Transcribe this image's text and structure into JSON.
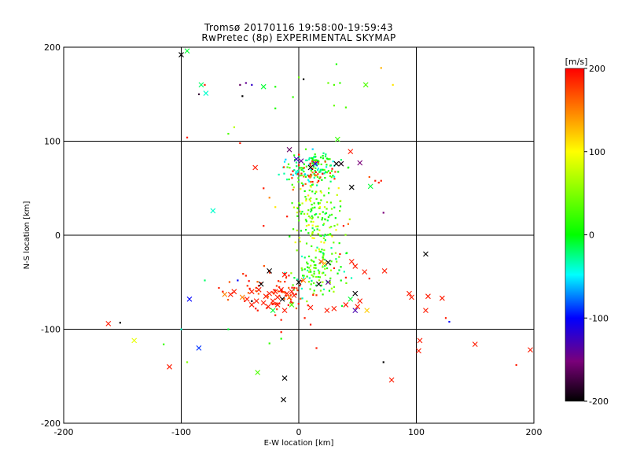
{
  "chart_data": {
    "type": "scatter",
    "title": "Tromsø 20170116 19:58:00-19:59:43",
    "subtitle": "RwPretec (8p) EXPERIMENTAL SKYMAP",
    "xlabel": "E-W location [km]",
    "ylabel": "N-S location [km]",
    "xlim": [
      -200,
      200
    ],
    "ylim": [
      -200,
      200
    ],
    "xticks": [
      "-200",
      "-100",
      "0",
      "100",
      "200"
    ],
    "yticks": [
      "-200",
      "-100",
      "0",
      "100",
      "200"
    ],
    "grid": true,
    "colorbar": {
      "label": "[m/s]",
      "range": [
        -200,
        200
      ],
      "ticks": [
        "200",
        "100",
        "0",
        "-100",
        "-200"
      ]
    },
    "markers": [
      {
        "x": -100,
        "y": 192,
        "v": -200,
        "m": "x"
      },
      {
        "x": -95,
        "y": 196,
        "v": -10,
        "m": "x"
      },
      {
        "x": -83,
        "y": 160,
        "v": -20,
        "m": "x"
      },
      {
        "x": -79,
        "y": 151,
        "v": -40,
        "m": "x"
      },
      {
        "x": -30,
        "y": 158,
        "v": -10,
        "m": "x"
      },
      {
        "x": 57,
        "y": 160,
        "v": 30,
        "m": "x"
      },
      {
        "x": 33,
        "y": 102,
        "v": 20,
        "m": "x"
      },
      {
        "x": -73,
        "y": 26,
        "v": -40,
        "m": "x"
      },
      {
        "x": -37,
        "y": 72,
        "v": 190,
        "m": "x"
      },
      {
        "x": -8,
        "y": 91,
        "v": -160,
        "m": "x"
      },
      {
        "x": -2,
        "y": 81,
        "v": -120,
        "m": "x"
      },
      {
        "x": 2,
        "y": 79,
        "v": -140,
        "m": "x"
      },
      {
        "x": 10,
        "y": 72,
        "v": -200,
        "m": "x"
      },
      {
        "x": 14,
        "y": 76,
        "v": -120,
        "m": "x"
      },
      {
        "x": 32,
        "y": 76,
        "v": -200,
        "m": "x"
      },
      {
        "x": 36,
        "y": 76,
        "v": -190,
        "m": "x"
      },
      {
        "x": 44,
        "y": 89,
        "v": 190,
        "m": "x"
      },
      {
        "x": 52,
        "y": 77,
        "v": -150,
        "m": "x"
      },
      {
        "x": 45,
        "y": 51,
        "v": -200,
        "m": "x"
      },
      {
        "x": 61,
        "y": 52,
        "v": -10,
        "m": "x"
      },
      {
        "x": 108,
        "y": -20,
        "v": -200,
        "m": "x"
      },
      {
        "x": 22,
        "y": -30,
        "v": 120,
        "m": "x"
      },
      {
        "x": 25,
        "y": -29,
        "v": -200,
        "m": "x"
      },
      {
        "x": 19,
        "y": -28,
        "v": 170,
        "m": "x"
      },
      {
        "x": 45,
        "y": -28,
        "v": 190,
        "m": "x"
      },
      {
        "x": 48,
        "y": -33,
        "v": 190,
        "m": "x"
      },
      {
        "x": 56,
        "y": -39,
        "v": 190,
        "m": "x"
      },
      {
        "x": 73,
        "y": -38,
        "v": 190,
        "m": "x"
      },
      {
        "x": -25,
        "y": -38,
        "v": -200,
        "m": "x"
      },
      {
        "x": -12,
        "y": -42,
        "v": 190,
        "m": "x"
      },
      {
        "x": 0,
        "y": -50,
        "v": -200,
        "m": "x"
      },
      {
        "x": 4,
        "y": -48,
        "v": 150,
        "m": "x"
      },
      {
        "x": 17,
        "y": -52,
        "v": -200,
        "m": "x"
      },
      {
        "x": 25,
        "y": -50,
        "v": -140,
        "m": "x"
      },
      {
        "x": -32,
        "y": -52,
        "v": -200,
        "m": "x"
      },
      {
        "x": -34,
        "y": -58,
        "v": 190,
        "m": "x"
      },
      {
        "x": -40,
        "y": -60,
        "v": 190,
        "m": "x"
      },
      {
        "x": -55,
        "y": -60,
        "v": 190,
        "m": "x"
      },
      {
        "x": -58,
        "y": -63,
        "v": 190,
        "m": "x"
      },
      {
        "x": -63,
        "y": -63,
        "v": 150,
        "m": "x"
      },
      {
        "x": -28,
        "y": -65,
        "v": 190,
        "m": "x"
      },
      {
        "x": -25,
        "y": -62,
        "v": 190,
        "m": "x"
      },
      {
        "x": -20,
        "y": -60,
        "v": 190,
        "m": "x"
      },
      {
        "x": -15,
        "y": -58,
        "v": 190,
        "m": "x"
      },
      {
        "x": -10,
        "y": -62,
        "v": 190,
        "m": "x"
      },
      {
        "x": -6,
        "y": -60,
        "v": 190,
        "m": "x"
      },
      {
        "x": -18,
        "y": -66,
        "v": 190,
        "m": "x"
      },
      {
        "x": -14,
        "y": -68,
        "v": -200,
        "m": "x"
      },
      {
        "x": -22,
        "y": -70,
        "v": 190,
        "m": "x"
      },
      {
        "x": -8,
        "y": -66,
        "v": 150,
        "m": "x"
      },
      {
        "x": -4,
        "y": -64,
        "v": 190,
        "m": "x"
      },
      {
        "x": -30,
        "y": -72,
        "v": 190,
        "m": "x"
      },
      {
        "x": -40,
        "y": -74,
        "v": 190,
        "m": "x"
      },
      {
        "x": -36,
        "y": -70,
        "v": 190,
        "m": "x"
      },
      {
        "x": -44,
        "y": -68,
        "v": 190,
        "m": "x"
      },
      {
        "x": -48,
        "y": -66,
        "v": 150,
        "m": "x"
      },
      {
        "x": -26,
        "y": -76,
        "v": 190,
        "m": "x"
      },
      {
        "x": -22,
        "y": -80,
        "v": -10,
        "m": "x"
      },
      {
        "x": -18,
        "y": -74,
        "v": 190,
        "m": "x"
      },
      {
        "x": -12,
        "y": -80,
        "v": 190,
        "m": "x"
      },
      {
        "x": -6,
        "y": -74,
        "v": 30,
        "m": "x"
      },
      {
        "x": 10,
        "y": -77,
        "v": 190,
        "m": "x"
      },
      {
        "x": 24,
        "y": -80,
        "v": 190,
        "m": "x"
      },
      {
        "x": 30,
        "y": -78,
        "v": 190,
        "m": "x"
      },
      {
        "x": 44,
        "y": -68,
        "v": -10,
        "m": "x"
      },
      {
        "x": 48,
        "y": -62,
        "v": -200,
        "m": "x"
      },
      {
        "x": 52,
        "y": -70,
        "v": 190,
        "m": "x"
      },
      {
        "x": 50,
        "y": -76,
        "v": 190,
        "m": "x"
      },
      {
        "x": 40,
        "y": -74,
        "v": 190,
        "m": "x"
      },
      {
        "x": 48,
        "y": -80,
        "v": -130,
        "m": "x"
      },
      {
        "x": 58,
        "y": -80,
        "v": 120,
        "m": "x"
      },
      {
        "x": -93,
        "y": -68,
        "v": -100,
        "m": "x"
      },
      {
        "x": -162,
        "y": -94,
        "v": 190,
        "m": "x"
      },
      {
        "x": -140,
        "y": -112,
        "v": 90,
        "m": "x"
      },
      {
        "x": -110,
        "y": -140,
        "v": 190,
        "m": "x"
      },
      {
        "x": -85,
        "y": -120,
        "v": -90,
        "m": "x"
      },
      {
        "x": -35,
        "y": -146,
        "v": 30,
        "m": "x"
      },
      {
        "x": -12,
        "y": -152,
        "v": -200,
        "m": "x"
      },
      {
        "x": -13,
        "y": -175,
        "v": -200,
        "m": "x"
      },
      {
        "x": 94,
        "y": -62,
        "v": 190,
        "m": "x"
      },
      {
        "x": 96,
        "y": -66,
        "v": 190,
        "m": "x"
      },
      {
        "x": 110,
        "y": -65,
        "v": 190,
        "m": "x"
      },
      {
        "x": 122,
        "y": -67,
        "v": 190,
        "m": "x"
      },
      {
        "x": 108,
        "y": -80,
        "v": 190,
        "m": "x"
      },
      {
        "x": 103,
        "y": -112,
        "v": 190,
        "m": "x"
      },
      {
        "x": 102,
        "y": -123,
        "v": 190,
        "m": "x"
      },
      {
        "x": 150,
        "y": -116,
        "v": 190,
        "m": "x"
      },
      {
        "x": 197,
        "y": -122,
        "v": 190,
        "m": "x"
      },
      {
        "x": 79,
        "y": -154,
        "v": 190,
        "m": "x"
      }
    ],
    "dots": [
      {
        "x": -85,
        "y": 150,
        "v": -180
      },
      {
        "x": -80,
        "y": 160,
        "v": 190
      },
      {
        "x": -50,
        "y": 160,
        "v": -160
      },
      {
        "x": -45,
        "y": 162,
        "v": -140
      },
      {
        "x": -40,
        "y": 160,
        "v": -120
      },
      {
        "x": -48,
        "y": 148,
        "v": -200
      },
      {
        "x": -20,
        "y": 158,
        "v": 10
      },
      {
        "x": 0,
        "y": 168,
        "v": 40
      },
      {
        "x": 4,
        "y": 166,
        "v": -200
      },
      {
        "x": -5,
        "y": 147,
        "v": 20
      },
      {
        "x": 25,
        "y": 162,
        "v": 40
      },
      {
        "x": 30,
        "y": 160,
        "v": 30
      },
      {
        "x": 35,
        "y": 162,
        "v": 20
      },
      {
        "x": 32,
        "y": 182,
        "v": 10
      },
      {
        "x": 70,
        "y": 178,
        "v": 130
      },
      {
        "x": 80,
        "y": 160,
        "v": 110
      },
      {
        "x": 30,
        "y": 138,
        "v": 40
      },
      {
        "x": 40,
        "y": 136,
        "v": 30
      },
      {
        "x": -20,
        "y": 135,
        "v": 10
      },
      {
        "x": -55,
        "y": 115,
        "v": 70
      },
      {
        "x": -60,
        "y": 108,
        "v": 30
      },
      {
        "x": -95,
        "y": 104,
        "v": 190
      },
      {
        "x": -50,
        "y": 98,
        "v": 190
      },
      {
        "x": 72,
        "y": 24,
        "v": -150
      },
      {
        "x": -30,
        "y": 50,
        "v": 190
      },
      {
        "x": -25,
        "y": 40,
        "v": 150
      },
      {
        "x": 65,
        "y": 58,
        "v": 190
      },
      {
        "x": 68,
        "y": 56,
        "v": 190
      },
      {
        "x": 70,
        "y": 58,
        "v": 190
      },
      {
        "x": 60,
        "y": 62,
        "v": 170
      },
      {
        "x": -20,
        "y": 30,
        "v": 110
      },
      {
        "x": -30,
        "y": 10,
        "v": 190
      },
      {
        "x": 38,
        "y": 10,
        "v": 190
      },
      {
        "x": 42,
        "y": 12,
        "v": 160
      },
      {
        "x": 22,
        "y": 30,
        "v": 80
      },
      {
        "x": -10,
        "y": 20,
        "v": 190
      },
      {
        "x": 35,
        "y": -20,
        "v": 190
      },
      {
        "x": 30,
        "y": -35,
        "v": 190
      },
      {
        "x": 40,
        "y": -45,
        "v": 190
      },
      {
        "x": -52,
        "y": -48,
        "v": -100
      },
      {
        "x": -40,
        "y": -70,
        "v": -200
      },
      {
        "x": -35,
        "y": -80,
        "v": 190
      },
      {
        "x": -20,
        "y": -85,
        "v": 190
      },
      {
        "x": -15,
        "y": -90,
        "v": 190
      },
      {
        "x": 5,
        "y": -88,
        "v": 190
      },
      {
        "x": 10,
        "y": -95,
        "v": 190
      },
      {
        "x": -68,
        "y": -56,
        "v": 190
      },
      {
        "x": -80,
        "y": -48,
        "v": -20
      },
      {
        "x": -100,
        "y": -100,
        "v": -40
      },
      {
        "x": -115,
        "y": -116,
        "v": 20
      },
      {
        "x": -152,
        "y": -93,
        "v": -200
      },
      {
        "x": -95,
        "y": -135,
        "v": 50
      },
      {
        "x": -60,
        "y": -100,
        "v": -10
      },
      {
        "x": -25,
        "y": -115,
        "v": 20
      },
      {
        "x": -15,
        "y": -110,
        "v": 10
      },
      {
        "x": -15,
        "y": -103,
        "v": 190
      },
      {
        "x": 15,
        "y": -120,
        "v": 190
      },
      {
        "x": 72,
        "y": -135,
        "v": -200
      },
      {
        "x": 125,
        "y": -88,
        "v": 190
      },
      {
        "x": 128,
        "y": -92,
        "v": -100
      },
      {
        "x": 185,
        "y": -138,
        "v": 190
      },
      {
        "x": 60,
        "y": -46,
        "v": 190
      },
      {
        "x": 30,
        "y": -55,
        "v": 40
      },
      {
        "x": -5,
        "y": -53,
        "v": 30
      },
      {
        "x": -45,
        "y": -43,
        "v": 190
      }
    ],
    "cluster": {
      "seed": 20170116,
      "groups": [
        {
          "cx": 10,
          "cy": 72,
          "sx": 12,
          "sy": 8,
          "n": 130,
          "vmin": -60,
          "vmax": 40
        },
        {
          "cx": 8,
          "cy": 66,
          "sx": 10,
          "sy": 8,
          "n": 40,
          "vmin": 150,
          "vmax": 200
        },
        {
          "cx": 14,
          "cy": 22,
          "sx": 11,
          "sy": 18,
          "n": 150,
          "vmin": -20,
          "vmax": 110
        },
        {
          "cx": 18,
          "cy": -40,
          "sx": 11,
          "sy": 14,
          "n": 110,
          "vmin": -40,
          "vmax": 70
        },
        {
          "cx": -20,
          "cy": -62,
          "sx": 16,
          "sy": 10,
          "n": 70,
          "vmin": 160,
          "vmax": 200
        }
      ]
    }
  }
}
